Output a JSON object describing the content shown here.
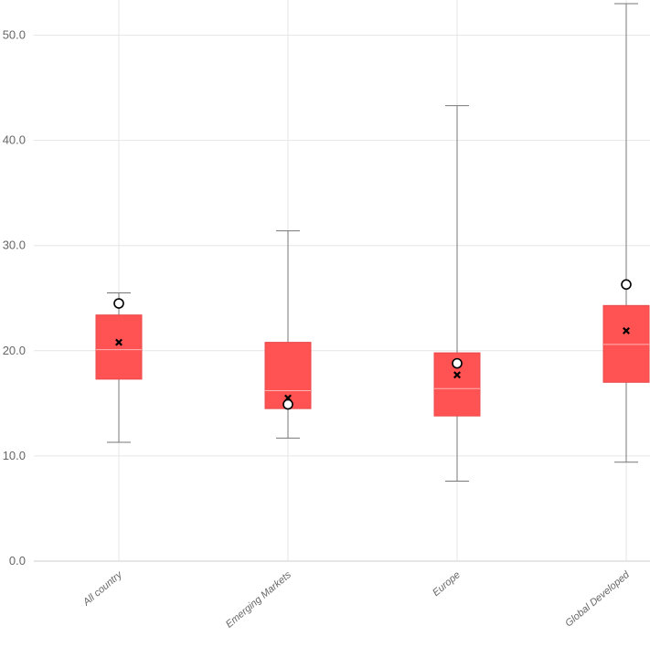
{
  "chart_data": {
    "type": "box",
    "title": "",
    "xlabel": "",
    "ylabel": "",
    "ylim": [
      0,
      53
    ],
    "y_ticks": [
      "0.0",
      "10.0",
      "20.0",
      "30.0",
      "40.0",
      "50.0"
    ],
    "y_tick_values": [
      0,
      10,
      20,
      30,
      40,
      50
    ],
    "grid": true,
    "categories": [
      "All country",
      "Emerging Markets",
      "Europe",
      "Global Developed"
    ],
    "box_color": "#ff5253",
    "boxes": [
      {
        "category": "All country",
        "min": 11.3,
        "q1": 17.3,
        "median": 20.1,
        "q3": 23.4,
        "max": 25.5,
        "mean": 20.8,
        "current": 24.5
      },
      {
        "category": "Emerging Markets",
        "min": 11.7,
        "q1": 14.5,
        "median": 16.2,
        "q3": 20.8,
        "max": 31.4,
        "mean": 15.5,
        "current": 14.9
      },
      {
        "category": "Europe",
        "min": 7.6,
        "q1": 13.8,
        "median": 16.4,
        "q3": 19.8,
        "max": 43.3,
        "mean": 17.7,
        "current": 18.8
      },
      {
        "category": "Global Developed",
        "min": 9.4,
        "q1": 17.0,
        "median": 20.6,
        "q3": 24.3,
        "max": 53.0,
        "mean": 21.9,
        "current": 26.3
      }
    ]
  }
}
